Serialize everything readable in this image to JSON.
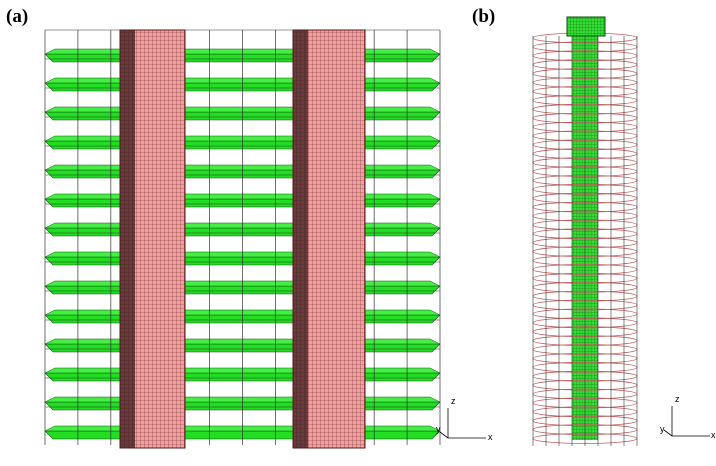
{
  "panels": [
    {
      "label": "(a)",
      "axes": {
        "z": "z",
        "y": "y",
        "x": "x"
      }
    },
    {
      "label": "(b)",
      "axes": {
        "z": "z",
        "y": "y",
        "x": "x"
      }
    }
  ]
}
